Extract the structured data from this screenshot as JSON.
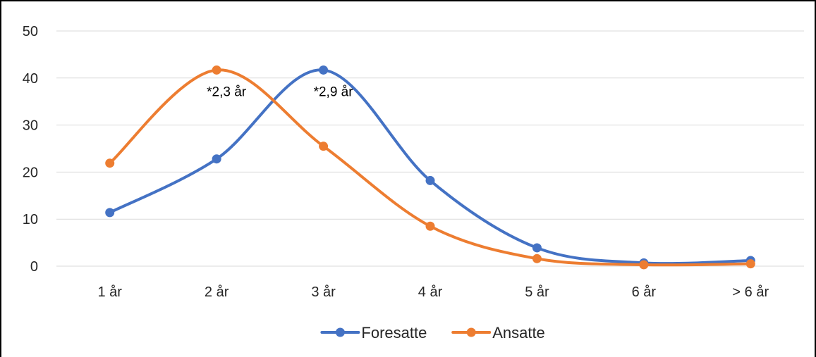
{
  "chart_data": {
    "type": "line",
    "title": "",
    "xlabel": "",
    "ylabel": "",
    "categories": [
      "1 år",
      "2 år",
      "3 år",
      "4 år",
      "5 år",
      "6 år",
      "> 6 år"
    ],
    "y_ticks": [
      0,
      10,
      20,
      30,
      40,
      50
    ],
    "ylim": [
      0,
      50
    ],
    "grid": true,
    "smooth": true,
    "legend_position": "bottom",
    "series": [
      {
        "name": "Foresatte",
        "color": "#4472C4",
        "values": [
          11.4,
          22.8,
          41.7,
          18.2,
          3.9,
          0.7,
          1.2
        ]
      },
      {
        "name": "Ansatte",
        "color": "#ED7D31",
        "values": [
          21.9,
          41.7,
          25.5,
          8.5,
          1.6,
          0.3,
          0.5
        ]
      }
    ],
    "annotations": [
      {
        "text": "*2,3 år",
        "category": "2 år",
        "y": 41.7
      },
      {
        "text": "*2,9 år",
        "category": "3 år",
        "y": 41.7
      }
    ]
  }
}
